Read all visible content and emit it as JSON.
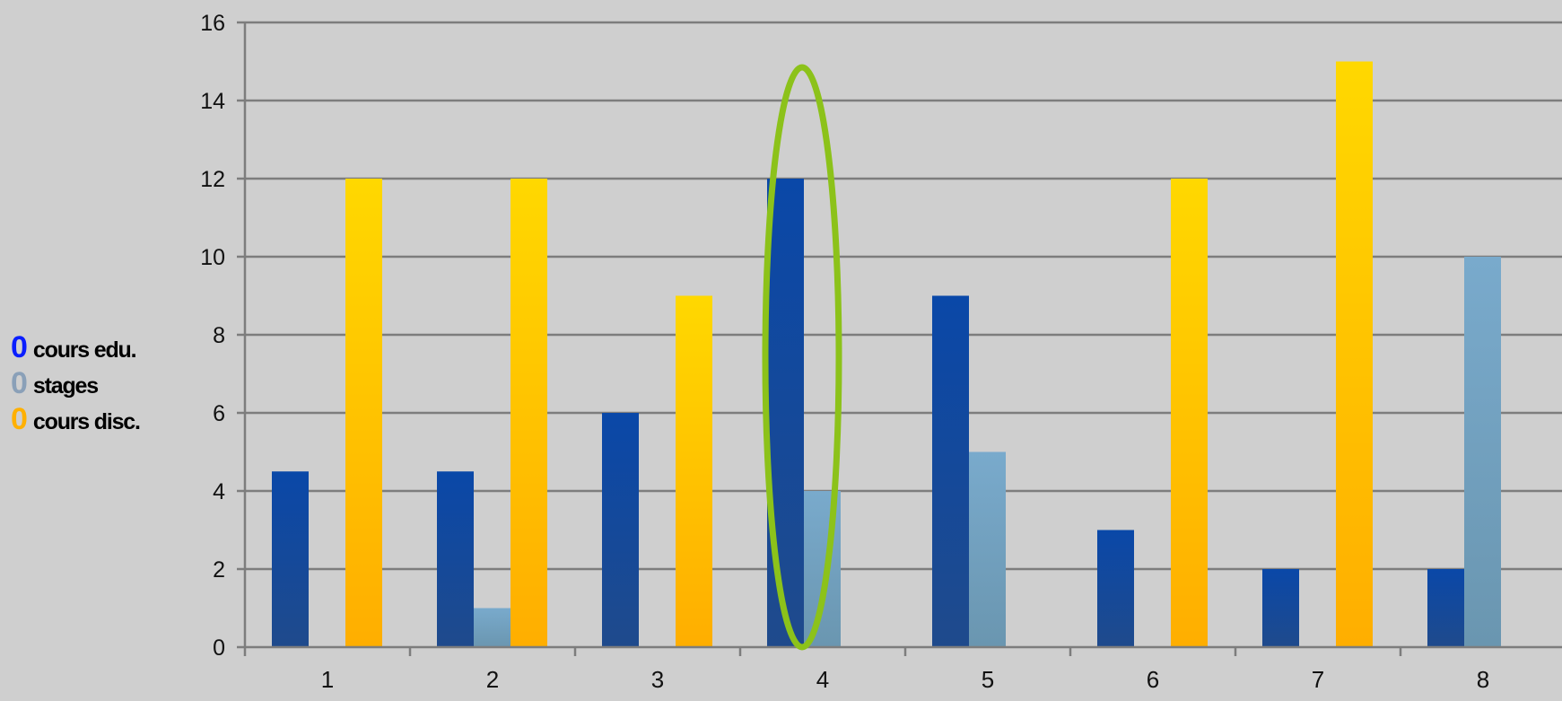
{
  "chart_data": {
    "type": "bar",
    "categories": [
      "1",
      "2",
      "3",
      "4",
      "5",
      "6",
      "7",
      "8"
    ],
    "series": [
      {
        "name": "cours edu.",
        "marker": "0",
        "color": "#1a4fa0",
        "values": [
          4.5,
          4.5,
          6,
          12,
          9,
          3,
          2,
          2
        ]
      },
      {
        "name": "stages",
        "marker": "0",
        "color": "#74a4c4",
        "values": [
          0,
          1,
          0,
          4,
          5,
          0,
          0,
          10
        ]
      },
      {
        "name": "cours disc.",
        "marker": "0",
        "color": "#ffc200",
        "values": [
          12,
          12,
          9,
          0,
          0,
          12,
          15,
          0
        ]
      }
    ],
    "legend_marker_colors": [
      "#0a1eff",
      "#8aa0b8",
      "#ffb000"
    ],
    "yticks": [
      "0",
      "2",
      "4",
      "6",
      "8",
      "10",
      "12",
      "14",
      "16"
    ],
    "ylim": [
      0,
      16
    ],
    "grid": true,
    "legend_position": "left",
    "highlight": {
      "category": "4",
      "shape": "ellipse",
      "color": "#8cc21a"
    },
    "title": "",
    "xlabel": "",
    "ylabel": ""
  }
}
